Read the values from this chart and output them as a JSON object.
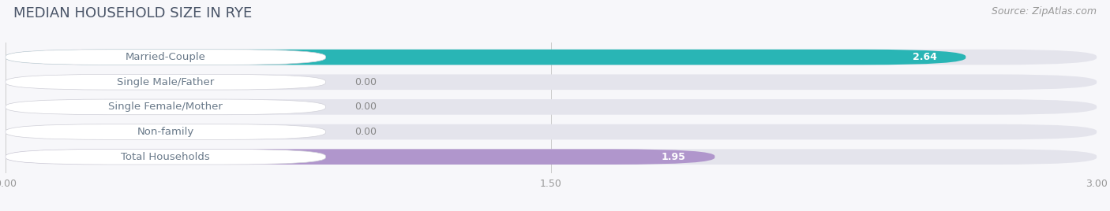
{
  "title": "MEDIAN HOUSEHOLD SIZE IN RYE",
  "source": "Source: ZipAtlas.com",
  "categories": [
    "Married-Couple",
    "Single Male/Father",
    "Single Female/Mother",
    "Non-family",
    "Total Households"
  ],
  "values": [
    2.64,
    0.0,
    0.0,
    0.0,
    1.95
  ],
  "bar_colors": [
    "#29b5b5",
    "#99aee0",
    "#f09db0",
    "#f5c890",
    "#b096cc"
  ],
  "bar_bg_color": "#e4e4ec",
  "label_bg_color": "#ffffff",
  "label_text_color": "#6a7a8a",
  "xlim_max": 3.0,
  "xticks": [
    0.0,
    1.5,
    3.0
  ],
  "xtick_labels": [
    "0.00",
    "1.50",
    "3.00"
  ],
  "title_fontsize": 13,
  "source_fontsize": 9,
  "label_fontsize": 9.5,
  "value_fontsize": 9,
  "background_color": "#f7f7fa",
  "bar_height": 0.62,
  "title_color": "#4a5568",
  "source_color": "#999999"
}
